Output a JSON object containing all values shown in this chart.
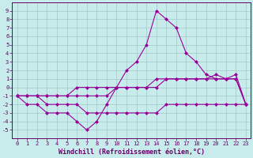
{
  "xlabel": "Windchill (Refroidissement éolien,°C)",
  "background_color": "#c8ecec",
  "grid_color": "#a0c8c8",
  "line_color": "#990099",
  "x_values": [
    0,
    1,
    2,
    3,
    4,
    5,
    6,
    7,
    8,
    9,
    10,
    11,
    12,
    13,
    14,
    15,
    16,
    17,
    18,
    19,
    20,
    21,
    22,
    23
  ],
  "series1": [
    -1,
    -2,
    -2,
    -3,
    -3,
    -3,
    -4,
    -5,
    -4,
    -2,
    0,
    2,
    3,
    5,
    9,
    8,
    7,
    4,
    3,
    1.5,
    1,
    1,
    1.5,
    -2
  ],
  "series2": [
    -1,
    -1,
    -1,
    -1,
    -1,
    -1,
    0,
    0,
    0,
    0,
    0,
    0,
    0,
    0,
    1,
    1,
    1,
    1,
    1,
    1,
    1.5,
    1,
    1,
    -2
  ],
  "series3": [
    -1,
    -1,
    -1,
    -1,
    -1,
    -1,
    -1,
    -1,
    -1,
    -1,
    0,
    0,
    0,
    0,
    0,
    1,
    1,
    1,
    1,
    1,
    1,
    1,
    1,
    -2
  ],
  "series4": [
    -1,
    -1,
    -1,
    -2,
    -2,
    -2,
    -2,
    -3,
    -3,
    -3,
    -3,
    -3,
    -3,
    -3,
    -3,
    -2,
    -2,
    -2,
    -2,
    -2,
    -2,
    -2,
    -2,
    -2
  ],
  "ylim": [
    -6,
    10
  ],
  "xlim": [
    -0.5,
    23.5
  ],
  "yticks": [
    -5,
    -4,
    -3,
    -2,
    -1,
    0,
    1,
    2,
    3,
    4,
    5,
    6,
    7,
    8,
    9
  ],
  "xticks": [
    0,
    1,
    2,
    3,
    4,
    5,
    6,
    7,
    8,
    9,
    10,
    11,
    12,
    13,
    14,
    15,
    16,
    17,
    18,
    19,
    20,
    21,
    22,
    23
  ],
  "font_color": "#660066",
  "tick_fontsize": 5,
  "xlabel_fontsize": 6
}
